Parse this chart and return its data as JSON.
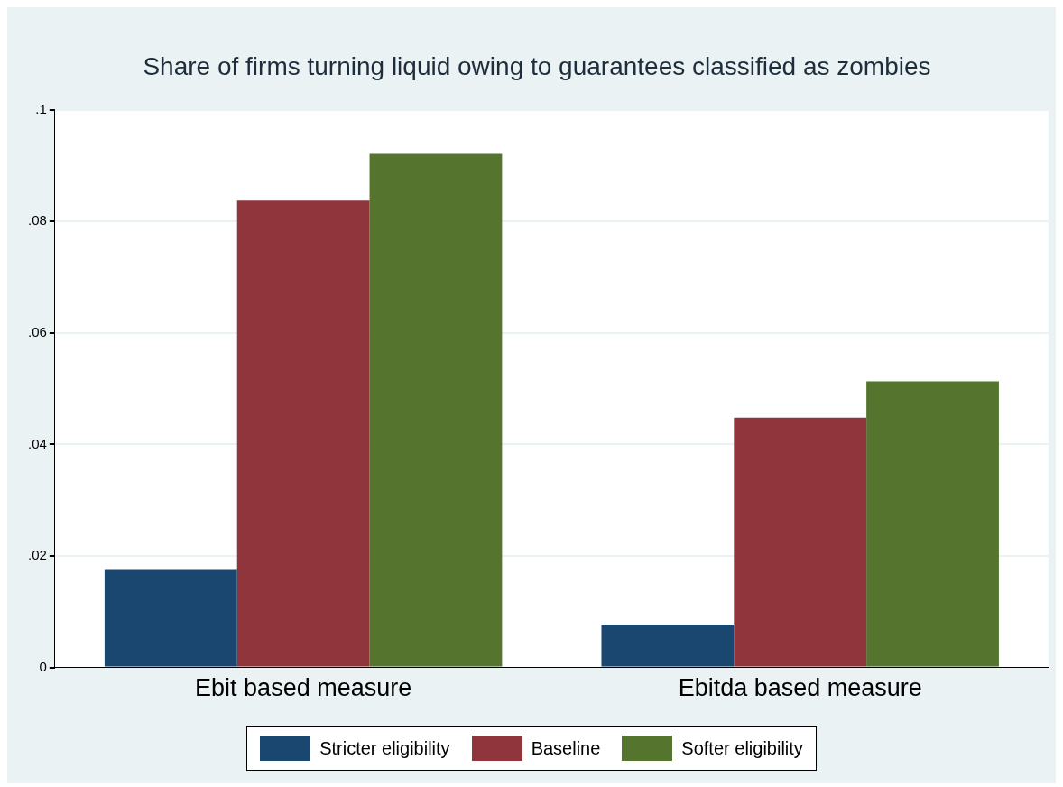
{
  "chart_data": {
    "type": "bar",
    "title": "Share of firms turning liquid owing to guarantees classified as zombies",
    "categories": [
      "Ebit based measure",
      "Ebitda based measure"
    ],
    "series": [
      {
        "name": "Stricter eligibility",
        "color": "#1a476f",
        "values": [
          0.0175,
          0.0077
        ]
      },
      {
        "name": "Baseline",
        "color": "#90353b",
        "values": [
          0.0837,
          0.0448
        ]
      },
      {
        "name": "Softer eligibility",
        "color": "#55752f",
        "values": [
          0.0921,
          0.0513
        ]
      }
    ],
    "ylim": [
      0,
      0.1
    ],
    "yticks": [
      {
        "value": 0,
        "label": "0"
      },
      {
        "value": 0.02,
        "label": ".02"
      },
      {
        "value": 0.04,
        "label": ".04"
      },
      {
        "value": 0.06,
        "label": ".06"
      },
      {
        "value": 0.08,
        "label": ".08"
      },
      {
        "value": 0.1,
        "label": ".1"
      }
    ],
    "grid": "y",
    "legend": "bottom"
  }
}
